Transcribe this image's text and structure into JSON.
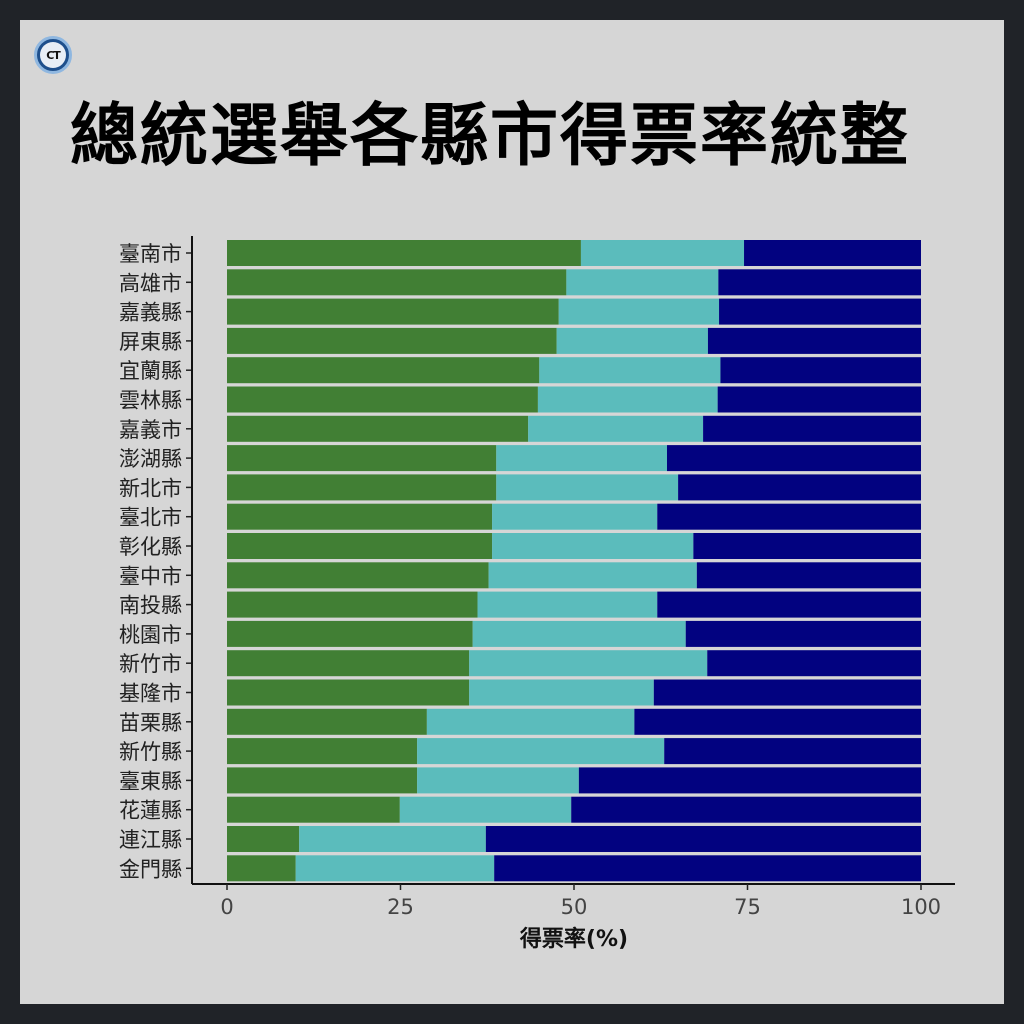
{
  "title": "總統選舉各縣市得票率統整",
  "logo_text": "CT",
  "chart_data": {
    "type": "bar",
    "orientation": "horizontal",
    "stacked": true,
    "categories": [
      "臺南市",
      "高雄市",
      "嘉義縣",
      "屏東縣",
      "宜蘭縣",
      "雲林縣",
      "嘉義市",
      "澎湖縣",
      "新北市",
      "臺北市",
      "彰化縣",
      "臺中市",
      "南投縣",
      "桃園市",
      "新竹市",
      "基隆市",
      "苗栗縣",
      "新竹縣",
      "臺東縣",
      "花蓮縣",
      "連江縣",
      "金門縣"
    ],
    "series": [
      {
        "color": "#417f34",
        "values": [
          51.0,
          48.9,
          47.8,
          47.5,
          45.0,
          44.8,
          43.4,
          38.8,
          38.8,
          38.2,
          38.2,
          37.7,
          36.1,
          35.4,
          34.9,
          34.9,
          28.8,
          27.4,
          27.4,
          24.9,
          10.4,
          9.9
        ]
      },
      {
        "color": "#5bbcbc",
        "values": [
          23.5,
          21.9,
          23.1,
          21.8,
          26.1,
          25.9,
          25.2,
          24.6,
          26.2,
          23.8,
          29.0,
          30.0,
          25.9,
          30.7,
          34.3,
          26.6,
          29.9,
          35.6,
          23.3,
          24.7,
          26.9,
          28.6
        ]
      },
      {
        "color": "#020280",
        "values": [
          25.5,
          29.2,
          29.1,
          30.7,
          28.9,
          29.3,
          31.4,
          36.6,
          35.0,
          38.0,
          32.8,
          32.3,
          38.0,
          33.9,
          30.8,
          38.5,
          41.3,
          37.0,
          49.3,
          50.4,
          62.7,
          61.5
        ]
      }
    ],
    "xlabel": "得票率(%)",
    "ylabel": "",
    "xlim": [
      0,
      100
    ],
    "xticks": [
      "0",
      "25",
      "50",
      "75",
      "100"
    ],
    "xtick_values": [
      0,
      25,
      50,
      75,
      100
    ],
    "grid": false,
    "legend": "none"
  }
}
